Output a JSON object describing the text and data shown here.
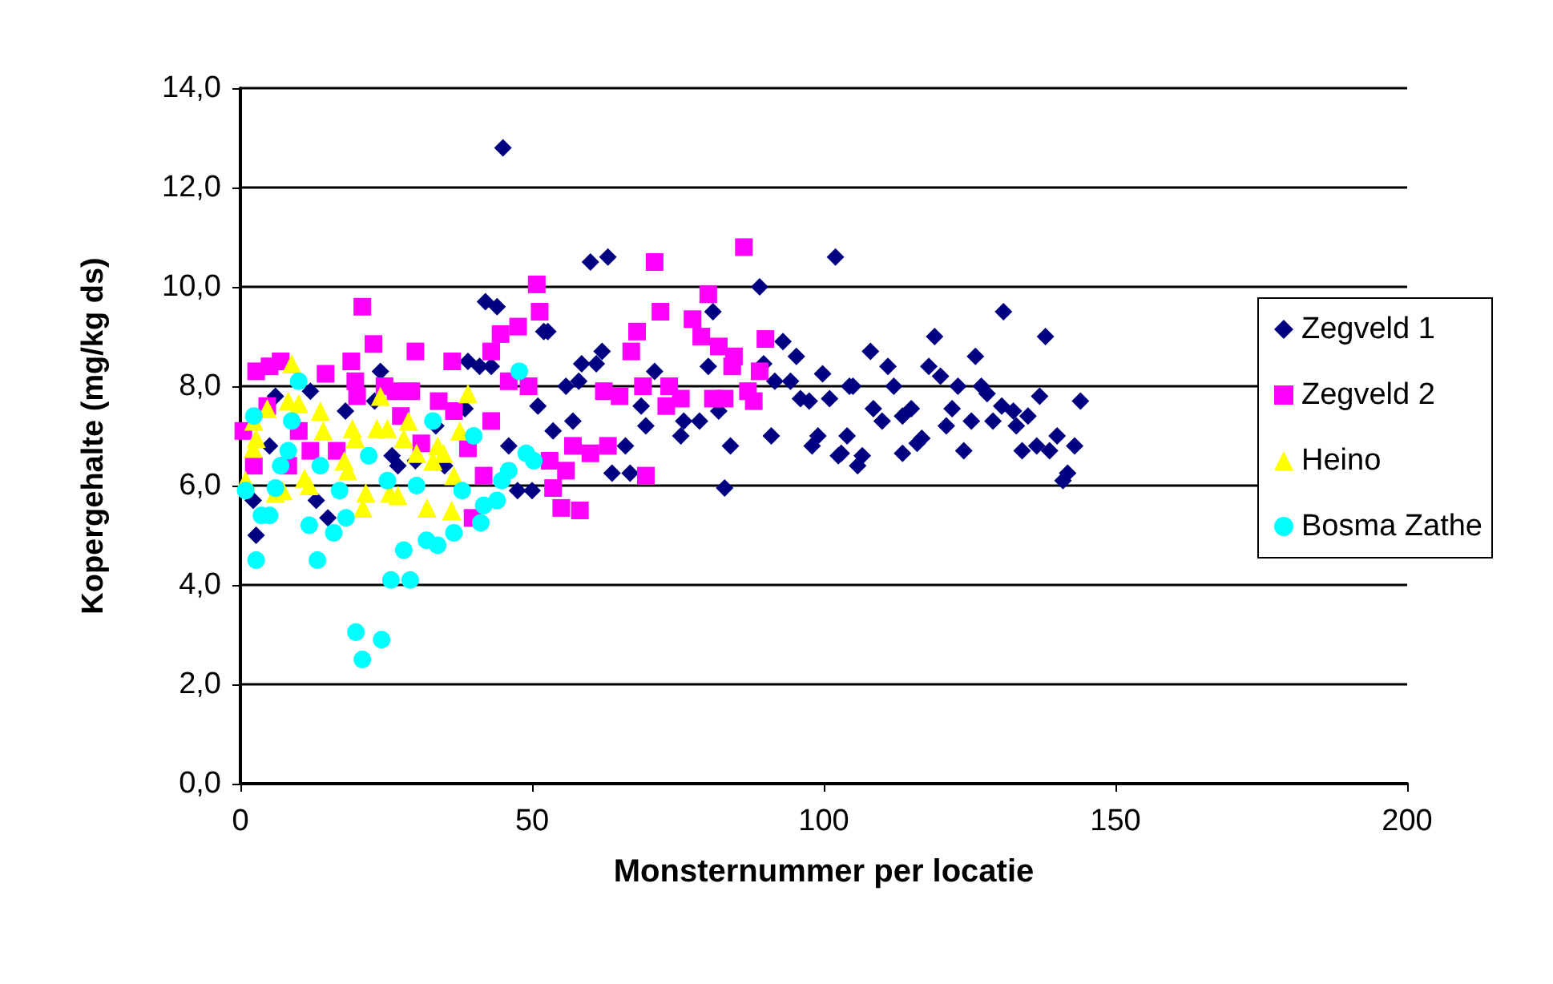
{
  "chart_data": {
    "type": "scatter",
    "xlabel": "Monsternummer per locatie",
    "ylabel": "Kopergehalte (mg/kg ds)",
    "xlim": [
      0,
      200
    ],
    "xticks": [
      0,
      50,
      100,
      150,
      200
    ],
    "ylim": [
      0,
      14
    ],
    "yticks": [
      {
        "value": 0,
        "label": "0,0"
      },
      {
        "value": 2,
        "label": "2,0"
      },
      {
        "value": 4,
        "label": "4,0"
      },
      {
        "value": 6,
        "label": "6,0"
      },
      {
        "value": 8,
        "label": "8,0"
      },
      {
        "value": 10,
        "label": "10,0"
      },
      {
        "value": 12,
        "label": "12,0"
      },
      {
        "value": 14,
        "label": "14,0"
      }
    ],
    "grid": "y",
    "legend": "right",
    "series": [
      {
        "name": "Zegveld 1",
        "color": "#000080",
        "marker": "diamond",
        "x": [
          2.2,
          2.7,
          5,
          6,
          12,
          13,
          15,
          18,
          23,
          24,
          26,
          27,
          30,
          33.5,
          35,
          38.5,
          39,
          41,
          42,
          43,
          44,
          45,
          46,
          47.5,
          50,
          51,
          52,
          52.7,
          53.6,
          55.8,
          57,
          58,
          58.5,
          60,
          61,
          62,
          63,
          63.7,
          66,
          66.8,
          68.7,
          69.5,
          71,
          75.5,
          76,
          78.7,
          80.2,
          81,
          82,
          83,
          84,
          89,
          89.7,
          91,
          91.6,
          93,
          94.3,
          95.3,
          96,
          97.5,
          98,
          99,
          99.8,
          101,
          102,
          102.5,
          103,
          104,
          104.4,
          105,
          105.8,
          106.6,
          108,
          108.5,
          110,
          111,
          112,
          113.5,
          113.5,
          115,
          116,
          116.8,
          118,
          119,
          120,
          121,
          122,
          123,
          124,
          125.3,
          126,
          127,
          128,
          129,
          130.5,
          130.8,
          132.5,
          133,
          134,
          135,
          136.5,
          137,
          138,
          138.7,
          140,
          141,
          141.8,
          143,
          144
        ],
        "values": [
          5.7,
          5.0,
          6.8,
          7.8,
          7.9,
          5.7,
          5.35,
          7.5,
          7.7,
          8.3,
          6.6,
          6.4,
          6.5,
          7.2,
          6.4,
          7.55,
          8.5,
          8.4,
          9.7,
          8.4,
          9.6,
          12.8,
          6.8,
          5.9,
          5.9,
          7.6,
          9.1,
          9.1,
          7.1,
          8.0,
          7.3,
          8.1,
          8.45,
          10.5,
          8.45,
          8.7,
          10.6,
          6.25,
          6.8,
          6.25,
          7.6,
          7.2,
          8.3,
          7.0,
          7.3,
          7.3,
          8.4,
          9.5,
          7.5,
          5.95,
          6.8,
          10.0,
          8.45,
          7.0,
          8.1,
          8.9,
          8.1,
          8.6,
          7.75,
          7.7,
          6.8,
          7.0,
          8.25,
          7.75,
          10.6,
          6.6,
          6.65,
          7.0,
          8.0,
          8.0,
          6.4,
          6.6,
          8.7,
          7.55,
          7.3,
          8.4,
          8.0,
          7.4,
          6.65,
          7.55,
          6.85,
          6.95,
          8.4,
          9.0,
          8.2,
          7.2,
          7.55,
          8.0,
          6.7,
          7.3,
          8.6,
          8.0,
          7.85,
          7.3,
          7.6,
          9.5,
          7.5,
          7.2,
          6.7,
          7.4,
          6.8,
          7.8,
          9.0,
          6.7,
          7.0,
          6.1,
          6.25,
          6.8,
          7.7
        ]
      },
      {
        "name": "Zegveld 2",
        "color": "#ff00ff",
        "marker": "square",
        "x": [
          0.5,
          2.3,
          2.7,
          4.6,
          5,
          6.9,
          8.2,
          10,
          12,
          14.6,
          16.5,
          19,
          19.7,
          20,
          20.9,
          22.8,
          24.7,
          26.6,
          27.5,
          29.3,
          30,
          31,
          34,
          36.3,
          36.6,
          39,
          39.8,
          41.7,
          43,
          43,
          44.6,
          46,
          47.6,
          49.4,
          50.8,
          51.3,
          53,
          53.6,
          55,
          55.8,
          57,
          58.2,
          60,
          62.3,
          63,
          65,
          67,
          68,
          69,
          69.5,
          71,
          72,
          73,
          73.5,
          75.5,
          77.5,
          79,
          80.2,
          81,
          82,
          83,
          84.3,
          84.6,
          86.3,
          87,
          88,
          89,
          90
        ],
        "values": [
          7.1,
          6.4,
          8.3,
          7.6,
          8.4,
          8.5,
          6.4,
          7.1,
          6.7,
          8.25,
          6.7,
          8.5,
          8.1,
          7.8,
          9.6,
          8.85,
          8.0,
          7.9,
          7.4,
          7.9,
          8.7,
          6.85,
          7.7,
          8.5,
          7.5,
          6.75,
          5.35,
          6.2,
          8.7,
          7.3,
          9.05,
          8.1,
          9.2,
          8.0,
          10.05,
          9.5,
          6.5,
          5.95,
          5.55,
          6.3,
          6.8,
          5.5,
          6.65,
          7.9,
          6.8,
          7.8,
          8.7,
          9.1,
          8.0,
          6.2,
          10.5,
          9.5,
          7.6,
          8.0,
          7.75,
          9.35,
          9.0,
          9.85,
          7.75,
          8.8,
          7.75,
          8.4,
          8.6,
          10.8,
          7.9,
          7.7,
          8.3,
          8.95
        ]
      },
      {
        "name": "Heino",
        "color": "#ffff00",
        "marker": "triangle",
        "x": [
          0.9,
          2.2,
          2.3,
          2.7,
          4.6,
          6,
          7.3,
          8.2,
          8.8,
          10,
          11,
          11.8,
          13.7,
          14.2,
          17.8,
          18.4,
          19.2,
          19.7,
          21,
          21.5,
          23.4,
          24,
          25.2,
          25.6,
          27,
          28,
          28.8,
          30.2,
          32,
          33,
          33.8,
          34.8,
          36.2,
          36.6,
          37.6,
          39
        ],
        "values": [
          6.1,
          6.75,
          7.3,
          6.95,
          7.55,
          5.85,
          5.9,
          7.7,
          8.45,
          7.65,
          6.15,
          6.0,
          7.5,
          7.1,
          6.5,
          6.3,
          7.15,
          6.95,
          5.55,
          5.85,
          7.15,
          7.8,
          7.15,
          5.85,
          5.8,
          6.95,
          7.3,
          6.65,
          5.55,
          6.5,
          6.8,
          6.65,
          5.5,
          6.2,
          7.1,
          7.85
        ]
      },
      {
        "name": "Bosma Zathe",
        "color": "#00ffff",
        "marker": "circle",
        "x": [
          0.9,
          2.3,
          2.7,
          3.6,
          5,
          6,
          6.9,
          8.2,
          8.8,
          10,
          11.8,
          13.2,
          13.7,
          16,
          17,
          18.1,
          19.8,
          20.9,
          22,
          24.2,
          25.2,
          25.8,
          28,
          29.1,
          30.2,
          31.9,
          33,
          33.8,
          36.6,
          38,
          40,
          41.2,
          41.7,
          44,
          44.8,
          46,
          47.8,
          49,
          50.3
        ],
        "values": [
          5.9,
          7.4,
          4.5,
          5.4,
          5.4,
          5.95,
          6.4,
          6.7,
          7.3,
          8.1,
          5.2,
          4.5,
          6.4,
          5.05,
          5.9,
          5.35,
          3.05,
          2.5,
          6.6,
          2.9,
          6.1,
          4.1,
          4.7,
          4.1,
          6.0,
          4.9,
          7.3,
          4.8,
          5.05,
          5.9,
          7.0,
          5.25,
          5.6,
          5.7,
          6.1,
          6.3,
          8.3,
          6.65,
          6.5
        ]
      }
    ]
  }
}
